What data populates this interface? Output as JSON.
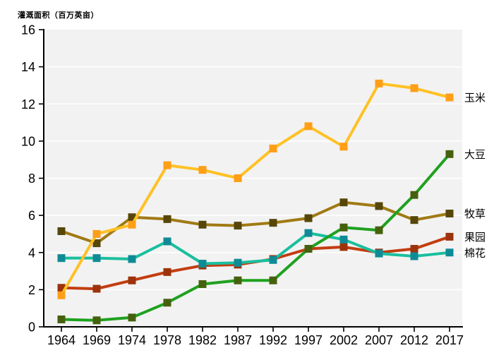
{
  "chart_data": {
    "type": "line",
    "title": "灌溉面积（百万英亩）",
    "xlabel": "",
    "ylabel": "灌溉面积（百万英亩）",
    "categories": [
      "1964",
      "1969",
      "1974",
      "1978",
      "1982",
      "1987",
      "1992",
      "1997",
      "2002",
      "2007",
      "2012",
      "2017"
    ],
    "ylim": [
      0,
      16
    ],
    "yticks": [
      0,
      2,
      4,
      6,
      8,
      10,
      12,
      14,
      16
    ],
    "grid": true,
    "legend_position": "end-labels-right",
    "series": [
      {
        "id": "hay",
        "name": "牧草",
        "values": [
          5.15,
          4.5,
          5.9,
          5.8,
          5.5,
          5.45,
          5.6,
          5.85,
          6.7,
          6.5,
          5.75,
          6.1
        ],
        "line_color": "#a07a14",
        "marker_color": "#564709"
      },
      {
        "id": "orchard",
        "name": "果园",
        "values": [
          2.1,
          2.05,
          2.5,
          2.95,
          3.3,
          3.35,
          3.65,
          4.2,
          4.3,
          4.0,
          4.2,
          4.85
        ],
        "line_color": "#c23d10",
        "marker_color": "#9c330c"
      },
      {
        "id": "cotton",
        "name": "棉花",
        "values": [
          3.7,
          3.7,
          3.65,
          4.6,
          3.4,
          3.45,
          3.6,
          5.05,
          4.7,
          3.95,
          3.8,
          4.0
        ],
        "line_color": "#1abf9e",
        "marker_color": "#0f8b96"
      },
      {
        "id": "corn",
        "name": "玉米",
        "values": [
          1.7,
          5.0,
          5.5,
          8.7,
          8.45,
          8.0,
          9.6,
          10.8,
          9.7,
          13.1,
          12.85,
          12.35
        ],
        "line_color": "#ffc125",
        "marker_color": "#ff9e17"
      },
      {
        "id": "soybeans",
        "name": "大豆",
        "values": [
          0.4,
          0.35,
          0.5,
          1.3,
          2.3,
          2.5,
          2.5,
          4.2,
          5.35,
          5.2,
          7.1,
          9.3
        ],
        "line_color": "#1fa11f",
        "marker_color": "#46610e"
      }
    ],
    "colors": {
      "plot_bg": "#f2f2f2",
      "gridline": "#ffffff",
      "axis": "#000000",
      "text": "#000000"
    }
  }
}
